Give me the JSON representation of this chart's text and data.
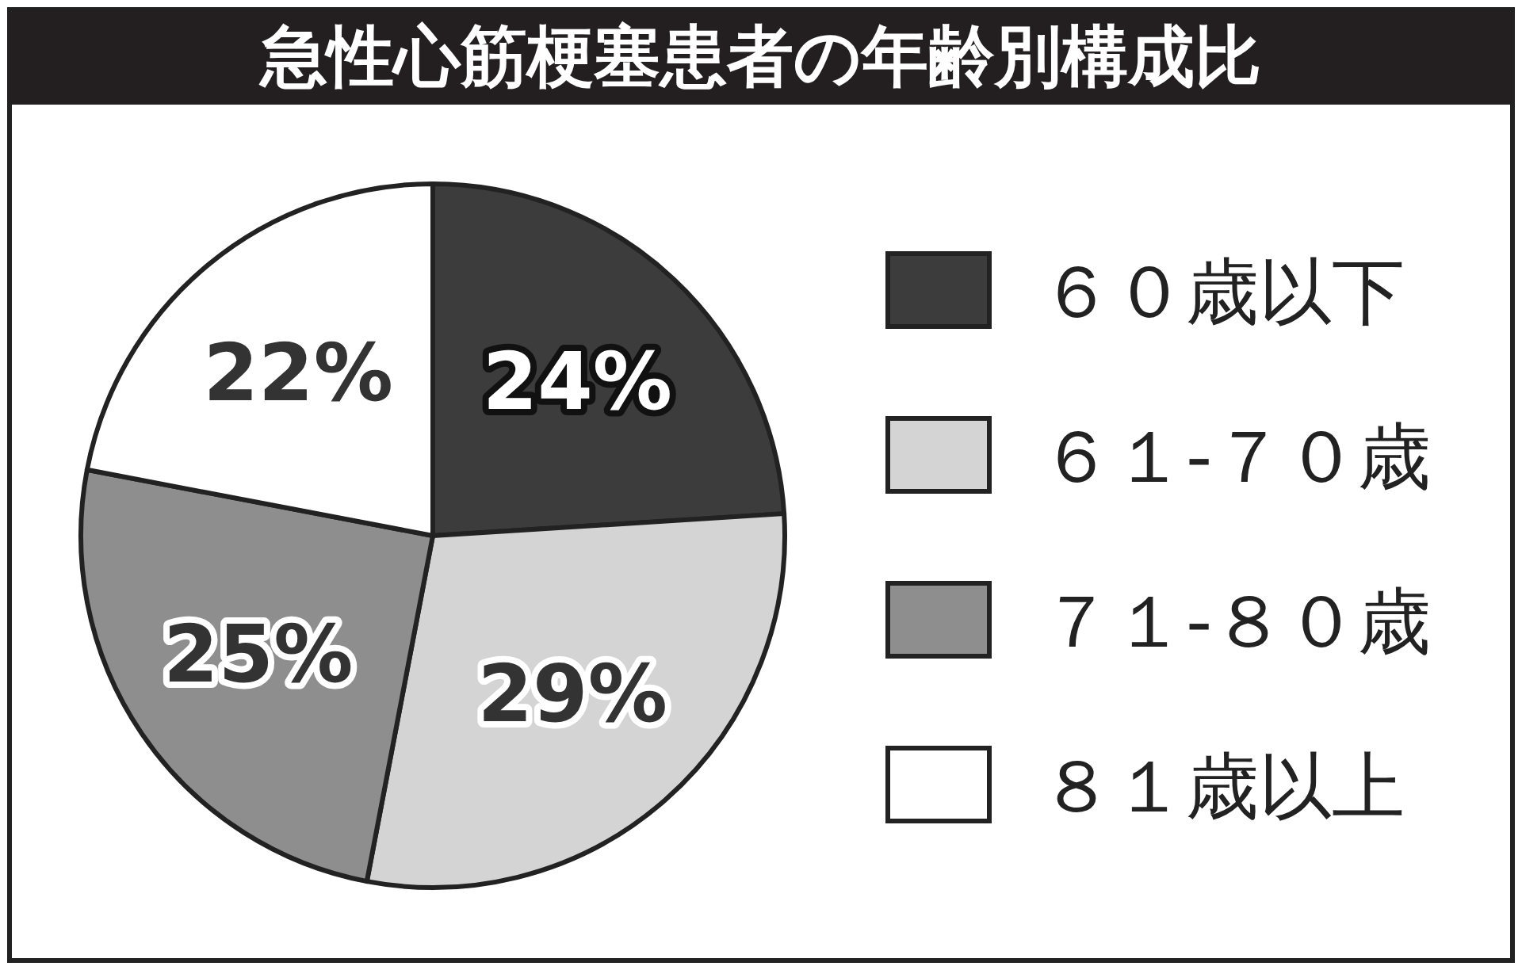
{
  "chart_data": {
    "type": "pie",
    "title": "急性心筋梗塞患者の年齢別構成比",
    "categories": [
      "６０歳以下",
      "６１-７０歳",
      "７１-８０歳",
      "８１歳以上"
    ],
    "values": [
      24,
      29,
      25,
      22
    ],
    "colors": [
      "#3c3c3c",
      "#d4d4d4",
      "#8e8e8e",
      "#ffffff"
    ],
    "value_labels": [
      "24%",
      "29%",
      "25%",
      "22%"
    ],
    "legend": "right"
  }
}
